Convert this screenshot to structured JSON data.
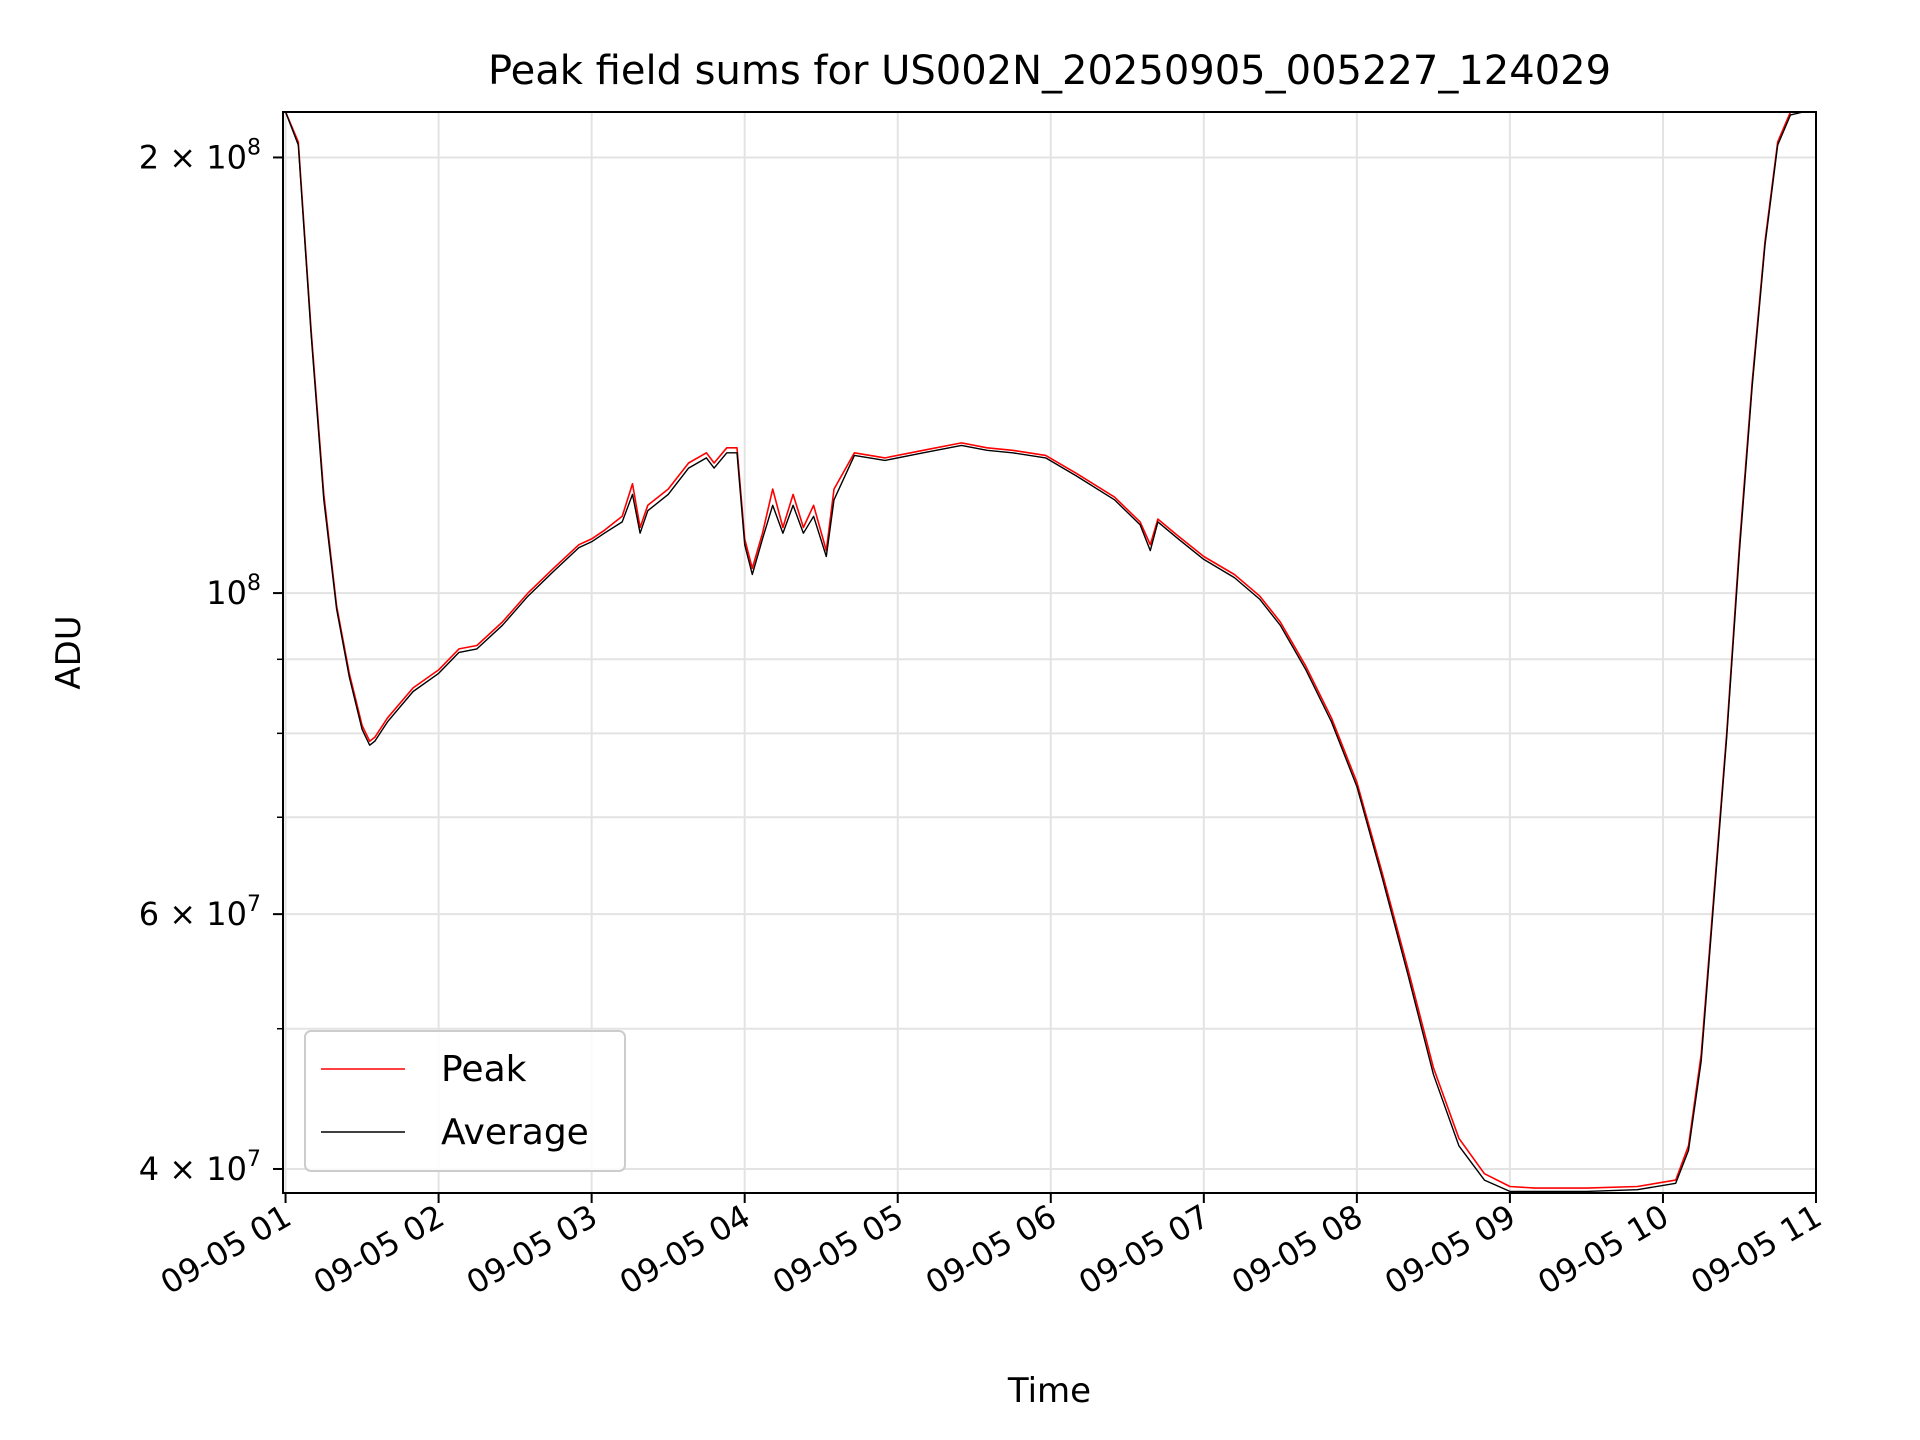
{
  "chart_data": {
    "type": "line",
    "title": "Peak field sums for US002N_20250905_005227_124029",
    "xlabel": "Time",
    "ylabel": "ADU",
    "y_scale": "log",
    "xlim": [
      "2025-09-05 00:59",
      "2025-09-05 11:00"
    ],
    "ylim": [
      38500000,
      215000000
    ],
    "x_ticks": [
      "2025-09-05 01:00",
      "2025-09-05 02:00",
      "2025-09-05 03:00",
      "2025-09-05 04:00",
      "2025-09-05 05:00",
      "2025-09-05 06:00",
      "2025-09-05 07:00",
      "2025-09-05 08:00",
      "2025-09-05 09:00",
      "2025-09-05 10:00",
      "2025-09-05 11:00"
    ],
    "x_tick_labels": [
      "09-05 01",
      "09-05 02",
      "09-05 03",
      "09-05 04",
      "09-05 05",
      "09-05 06",
      "09-05 07",
      "09-05 08",
      "09-05 09",
      "09-05 10",
      "09-05 11"
    ],
    "y_ticks": [
      {
        "value": 40000000,
        "mantissa": "4",
        "exponent": "7"
      },
      {
        "value": 60000000,
        "mantissa": "6",
        "exponent": "7"
      },
      {
        "value": 100000000,
        "mantissa": "",
        "exponent": "8"
      },
      {
        "value": 200000000,
        "mantissa": "2",
        "exponent": "8"
      }
    ],
    "y_minor_ticks": [
      50000000,
      70000000,
      80000000,
      90000000
    ],
    "grid": true,
    "legend_position": "lower-left",
    "series": [
      {
        "name": "Peak",
        "color": "#ff0000",
        "x": [
          "2025-09-05 01:00",
          "2025-09-05 01:05",
          "2025-09-05 01:10",
          "2025-09-05 01:15",
          "2025-09-05 01:20",
          "2025-09-05 01:25",
          "2025-09-05 01:30",
          "2025-09-05 01:33",
          "2025-09-05 01:35",
          "2025-09-05 01:40",
          "2025-09-05 01:50",
          "2025-09-05 02:00",
          "2025-09-05 02:08",
          "2025-09-05 02:15",
          "2025-09-05 02:25",
          "2025-09-05 02:35",
          "2025-09-05 02:45",
          "2025-09-05 02:55",
          "2025-09-05 03:00",
          "2025-09-05 03:05",
          "2025-09-05 03:12",
          "2025-09-05 03:16",
          "2025-09-05 03:19",
          "2025-09-05 03:22",
          "2025-09-05 03:30",
          "2025-09-05 03:38",
          "2025-09-05 03:45",
          "2025-09-05 03:48",
          "2025-09-05 03:53",
          "2025-09-05 03:57",
          "2025-09-05 04:00",
          "2025-09-05 04:03",
          "2025-09-05 04:07",
          "2025-09-05 04:11",
          "2025-09-05 04:15",
          "2025-09-05 04:19",
          "2025-09-05 04:23",
          "2025-09-05 04:27",
          "2025-09-05 04:32",
          "2025-09-05 04:35",
          "2025-09-05 04:43",
          "2025-09-05 04:55",
          "2025-09-05 05:10",
          "2025-09-05 05:25",
          "2025-09-05 05:35",
          "2025-09-05 05:45",
          "2025-09-05 05:58",
          "2025-09-05 06:10",
          "2025-09-05 06:25",
          "2025-09-05 06:35",
          "2025-09-05 06:39",
          "2025-09-05 06:42",
          "2025-09-05 06:50",
          "2025-09-05 07:00",
          "2025-09-05 07:12",
          "2025-09-05 07:22",
          "2025-09-05 07:30",
          "2025-09-05 07:40",
          "2025-09-05 07:50",
          "2025-09-05 08:00",
          "2025-09-05 08:10",
          "2025-09-05 08:20",
          "2025-09-05 08:30",
          "2025-09-05 08:40",
          "2025-09-05 08:50",
          "2025-09-05 09:00",
          "2025-09-05 09:10",
          "2025-09-05 09:30",
          "2025-09-05 09:50",
          "2025-09-05 10:05",
          "2025-09-05 10:10",
          "2025-09-05 10:15",
          "2025-09-05 10:20",
          "2025-09-05 10:25",
          "2025-09-05 10:30",
          "2025-09-05 10:35",
          "2025-09-05 10:40",
          "2025-09-05 10:45",
          "2025-09-05 10:50",
          "2025-09-05 10:55",
          "2025-09-05 10:58"
        ],
        "y": [
          215000000,
          205000000,
          152000000,
          117000000,
          98000000,
          88000000,
          81000000,
          79000000,
          79500000,
          82000000,
          86000000,
          88500000,
          91500000,
          92000000,
          95500000,
          100000000,
          104000000,
          108000000,
          109000000,
          110500000,
          113000000,
          119000000,
          111000000,
          115000000,
          118000000,
          123000000,
          125000000,
          123000000,
          126000000,
          126000000,
          109000000,
          104000000,
          110000000,
          118000000,
          111000000,
          117000000,
          111000000,
          115000000,
          107000000,
          118000000,
          125000000,
          124000000,
          125500000,
          127000000,
          126000000,
          125500000,
          124500000,
          121000000,
          116500000,
          112000000,
          108000000,
          112500000,
          109500000,
          106000000,
          103000000,
          99500000,
          95500000,
          89000000,
          82000000,
          74000000,
          64000000,
          55000000,
          47000000,
          42000000,
          39700000,
          38900000,
          38800000,
          38800000,
          38900000,
          39300000,
          41500000,
          48000000,
          62000000,
          80000000,
          108000000,
          140000000,
          175000000,
          205000000,
          215000000,
          215000000,
          215000000
        ]
      },
      {
        "name": "Average",
        "color": "#000000",
        "x": [
          "2025-09-05 01:00",
          "2025-09-05 01:05",
          "2025-09-05 01:10",
          "2025-09-05 01:15",
          "2025-09-05 01:20",
          "2025-09-05 01:25",
          "2025-09-05 01:30",
          "2025-09-05 01:33",
          "2025-09-05 01:35",
          "2025-09-05 01:40",
          "2025-09-05 01:50",
          "2025-09-05 02:00",
          "2025-09-05 02:08",
          "2025-09-05 02:15",
          "2025-09-05 02:25",
          "2025-09-05 02:35",
          "2025-09-05 02:45",
          "2025-09-05 02:55",
          "2025-09-05 03:00",
          "2025-09-05 03:05",
          "2025-09-05 03:12",
          "2025-09-05 03:16",
          "2025-09-05 03:19",
          "2025-09-05 03:22",
          "2025-09-05 03:30",
          "2025-09-05 03:38",
          "2025-09-05 03:45",
          "2025-09-05 03:48",
          "2025-09-05 03:53",
          "2025-09-05 03:57",
          "2025-09-05 04:00",
          "2025-09-05 04:03",
          "2025-09-05 04:07",
          "2025-09-05 04:11",
          "2025-09-05 04:15",
          "2025-09-05 04:19",
          "2025-09-05 04:23",
          "2025-09-05 04:27",
          "2025-09-05 04:32",
          "2025-09-05 04:35",
          "2025-09-05 04:43",
          "2025-09-05 04:55",
          "2025-09-05 05:10",
          "2025-09-05 05:25",
          "2025-09-05 05:35",
          "2025-09-05 05:45",
          "2025-09-05 05:58",
          "2025-09-05 06:10",
          "2025-09-05 06:25",
          "2025-09-05 06:35",
          "2025-09-05 06:39",
          "2025-09-05 06:42",
          "2025-09-05 06:50",
          "2025-09-05 07:00",
          "2025-09-05 07:12",
          "2025-09-05 07:22",
          "2025-09-05 07:30",
          "2025-09-05 07:40",
          "2025-09-05 07:50",
          "2025-09-05 08:00",
          "2025-09-05 08:10",
          "2025-09-05 08:20",
          "2025-09-05 08:30",
          "2025-09-05 08:40",
          "2025-09-05 08:50",
          "2025-09-05 09:00",
          "2025-09-05 09:10",
          "2025-09-05 09:30",
          "2025-09-05 09:50",
          "2025-09-05 10:05",
          "2025-09-05 10:10",
          "2025-09-05 10:15",
          "2025-09-05 10:20",
          "2025-09-05 10:25",
          "2025-09-05 10:30",
          "2025-09-05 10:35",
          "2025-09-05 10:40",
          "2025-09-05 10:45",
          "2025-09-05 10:50",
          "2025-09-05 10:55",
          "2025-09-05 10:58"
        ],
        "y": [
          215000000,
          204000000,
          151000000,
          116000000,
          97500000,
          87500000,
          80500000,
          78500000,
          79000000,
          81500000,
          85500000,
          88000000,
          91000000,
          91500000,
          95000000,
          99500000,
          103500000,
          107500000,
          108500000,
          110000000,
          112000000,
          117000000,
          110000000,
          114000000,
          117000000,
          122000000,
          124000000,
          122000000,
          125000000,
          125000000,
          108000000,
          103000000,
          109000000,
          115000000,
          110000000,
          115000000,
          110000000,
          113000000,
          106000000,
          116000000,
          124500000,
          123500000,
          125000000,
          126500000,
          125500000,
          125000000,
          124000000,
          120500000,
          116000000,
          111500000,
          107000000,
          112000000,
          109000000,
          105500000,
          102500000,
          99000000,
          95000000,
          88500000,
          81500000,
          73500000,
          63500000,
          54500000,
          46500000,
          41500000,
          39300000,
          38600000,
          38600000,
          38600000,
          38700000,
          39100000,
          41200000,
          47500000,
          61500000,
          79500000,
          107000000,
          139000000,
          174000000,
          204000000,
          214000000,
          215000000,
          215000000
        ]
      }
    ]
  }
}
